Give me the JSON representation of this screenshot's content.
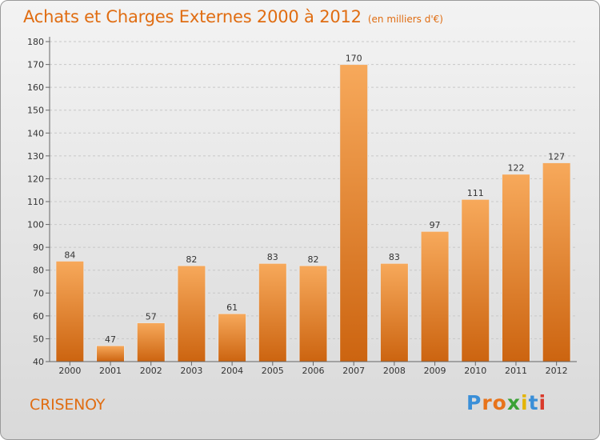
{
  "title": "Achats et Charges Externes 2000 à 2012",
  "unit_note": "(en milliers d'€)",
  "commune": "CRISENOY",
  "logo": {
    "letters": [
      "P",
      "r",
      "o",
      "x",
      "i",
      "t",
      "i"
    ],
    "colors": [
      "#3a8fd8",
      "#e8731a",
      "#e8731a",
      "#3ba236",
      "#e4b400",
      "#3a8fd8",
      "#d93a2b"
    ]
  },
  "colors": {
    "bar_light": "#f7a95b",
    "bar_dark": "#cc6410",
    "title": "#e06d12"
  },
  "chart_data": {
    "type": "bar",
    "title": "Achats et Charges Externes 2000 à 2012",
    "subtitle": "(en milliers d'€)",
    "categories": [
      "2000",
      "2001",
      "2002",
      "2003",
      "2004",
      "2005",
      "2006",
      "2007",
      "2008",
      "2009",
      "2010",
      "2011",
      "2012"
    ],
    "values": [
      84,
      47,
      57,
      82,
      61,
      83,
      82,
      170,
      83,
      97,
      111,
      122,
      127
    ],
    "ylim": [
      40,
      180
    ],
    "yticks": [
      40,
      50,
      60,
      70,
      80,
      90,
      100,
      110,
      120,
      130,
      140,
      150,
      160,
      170,
      180
    ],
    "grid": true,
    "xlabel": "",
    "ylabel": ""
  }
}
